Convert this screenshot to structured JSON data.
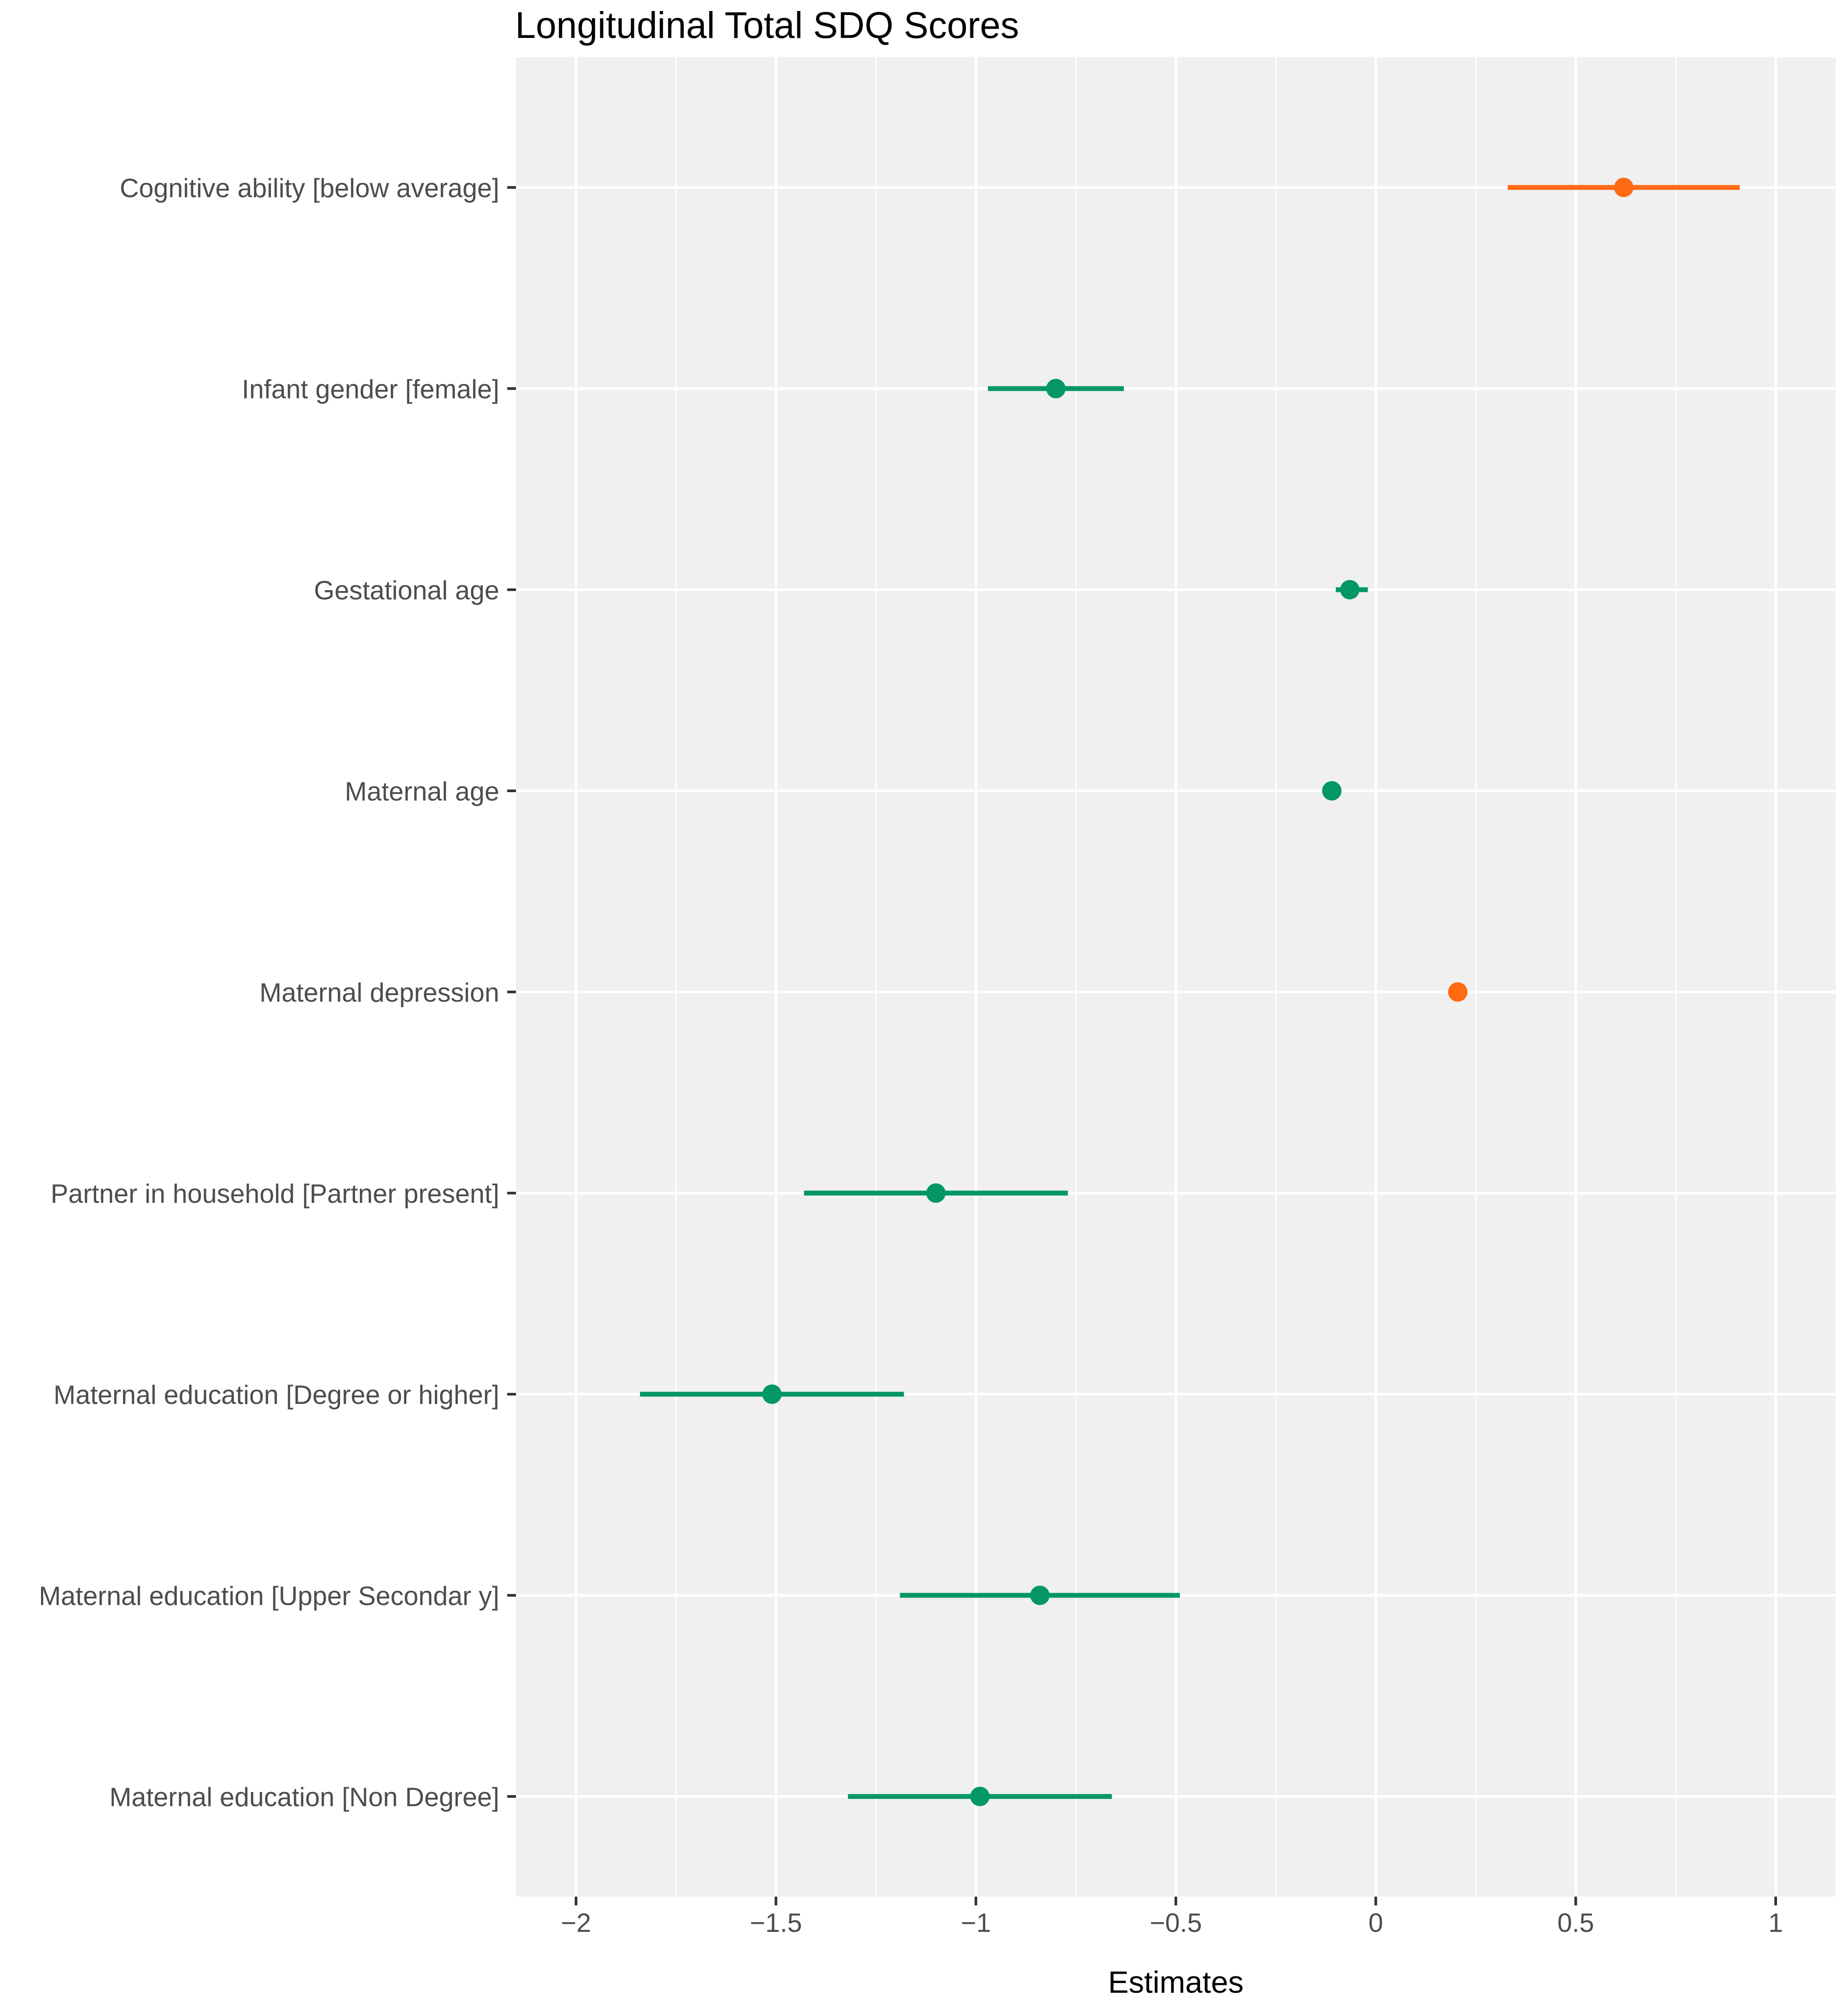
{
  "chart_data": {
    "type": "forest",
    "title": "Longitudinal Total SDQ Scores",
    "xlabel": "Estimates",
    "ylabel": "",
    "xlim": [
      -2.15,
      1.15
    ],
    "x_ticks": [
      {
        "value": -2,
        "label": "−2"
      },
      {
        "value": -1.5,
        "label": "−1.5"
      },
      {
        "value": -1,
        "label": "−1"
      },
      {
        "value": -0.5,
        "label": "−0.5"
      },
      {
        "value": 0,
        "label": "0"
      },
      {
        "value": 0.5,
        "label": "0.5"
      },
      {
        "value": 1,
        "label": "1"
      }
    ],
    "x_minor_ticks": [
      -1.75,
      -1.25,
      -0.75,
      -0.25,
      0.25,
      0.75
    ],
    "grid": true,
    "colors": {
      "positive": "#ff6a13",
      "negative": "#029765",
      "panel_background": "#f0f0f0",
      "grid": "#ffffff"
    },
    "terms": [
      {
        "label": "Cognitive ability [below average]",
        "estimate": 0.62,
        "ci_low": 0.33,
        "ci_high": 0.91
      },
      {
        "label": "Infant gender [female]",
        "estimate": -0.8,
        "ci_low": -0.97,
        "ci_high": -0.63
      },
      {
        "label": "Gestational age",
        "estimate": -0.065,
        "ci_low": -0.1,
        "ci_high": -0.02
      },
      {
        "label": "Maternal age",
        "estimate": -0.11,
        "ci_low": -0.12,
        "ci_high": -0.1
      },
      {
        "label": "Maternal depression",
        "estimate": 0.205,
        "ci_low": 0.195,
        "ci_high": 0.215
      },
      {
        "label": "Partner in household [Partner present]",
        "estimate": -1.1,
        "ci_low": -1.43,
        "ci_high": -0.77
      },
      {
        "label": "Maternal education [Degree or higher]",
        "estimate": -1.51,
        "ci_low": -1.84,
        "ci_high": -1.18
      },
      {
        "label": "Maternal education [Upper Secondar y]",
        "estimate": -0.84,
        "ci_low": -1.19,
        "ci_high": -0.49
      },
      {
        "label": "Maternal education [Non Degree]",
        "estimate": -0.99,
        "ci_low": -1.32,
        "ci_high": -0.66
      }
    ]
  }
}
